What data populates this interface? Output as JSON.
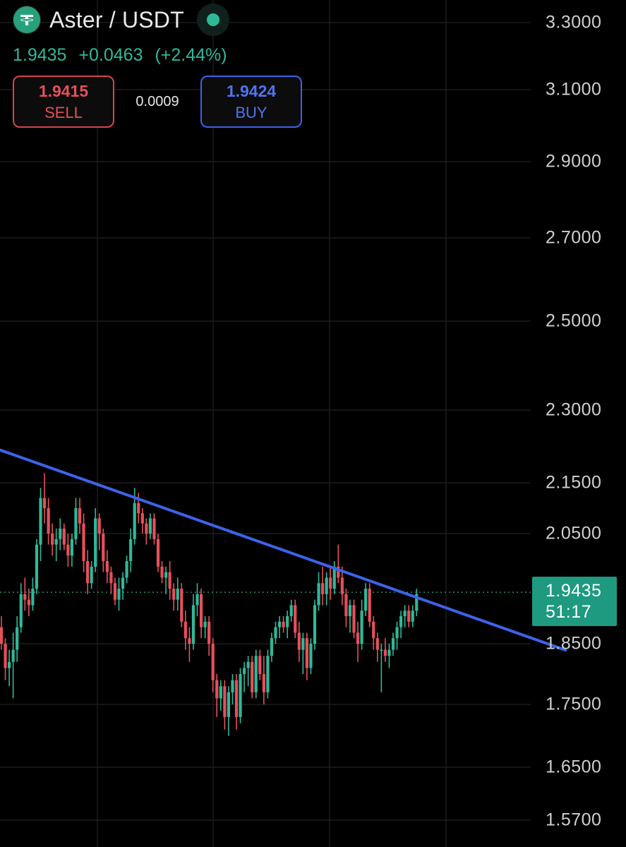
{
  "header": {
    "symbol_icon": "tether-icon",
    "title": "Aster / USDT",
    "status": "market-open-dot",
    "last_price": "1.9435",
    "change_abs": "+0.0463",
    "change_pct": "(+2.44%)"
  },
  "trade": {
    "sell_price": "1.9415",
    "sell_label": "SELL",
    "spread": "0.0009",
    "buy_price": "1.9424",
    "buy_label": "BUY"
  },
  "price_axis": {
    "ticks": [
      "3.3000",
      "3.1000",
      "2.9000",
      "2.7000",
      "2.5000",
      "2.3000",
      "2.1500",
      "2.0500",
      "1.8500",
      "1.7500",
      "1.6500",
      "1.5700"
    ],
    "current_price": "1.9435",
    "countdown": "51:17"
  },
  "colors": {
    "background": "#000000",
    "up": "#2fb898",
    "down": "#e5505b",
    "trendline": "#3d63e9",
    "grid": "#1c1c1c",
    "price_tag": "#1d9a80"
  },
  "chart_data": {
    "type": "candlestick",
    "title": "Aster / USDT",
    "y_scale": "log",
    "ylim": [
      1.57,
      3.3
    ],
    "y_ticks": [
      3.3,
      3.1,
      2.9,
      2.7,
      2.5,
      2.3,
      2.15,
      2.05,
      1.85,
      1.75,
      1.65,
      1.57
    ],
    "grid": true,
    "last_price": 1.9435,
    "series": [
      {
        "name": "Aster / USDT",
        "ohlc": [
          [
            1.88,
            1.9,
            1.84,
            1.85
          ],
          [
            1.85,
            1.86,
            1.79,
            1.81
          ],
          [
            1.81,
            1.84,
            1.78,
            1.82
          ],
          [
            1.82,
            1.87,
            1.76,
            1.84
          ],
          [
            1.84,
            1.9,
            1.82,
            1.88
          ],
          [
            1.88,
            1.96,
            1.87,
            1.94
          ],
          [
            1.94,
            1.97,
            1.91,
            1.93
          ],
          [
            1.93,
            1.95,
            1.9,
            1.92
          ],
          [
            1.92,
            1.97,
            1.91,
            1.95
          ],
          [
            1.95,
            2.04,
            1.94,
            2.03
          ],
          [
            2.03,
            2.14,
            2.0,
            2.12
          ],
          [
            2.12,
            2.17,
            2.07,
            2.1
          ],
          [
            2.1,
            2.12,
            2.03,
            2.05
          ],
          [
            2.05,
            2.07,
            2.01,
            2.03
          ],
          [
            2.03,
            2.06,
            2.0,
            2.04
          ],
          [
            2.04,
            2.08,
            2.02,
            2.06
          ],
          [
            2.06,
            2.07,
            2.02,
            2.03
          ],
          [
            2.03,
            2.05,
            1.99,
            2.01
          ],
          [
            2.01,
            2.05,
            1.99,
            2.04
          ],
          [
            2.04,
            2.12,
            2.03,
            2.1
          ],
          [
            2.1,
            2.12,
            2.05,
            2.07
          ],
          [
            2.07,
            2.09,
            1.98,
            2.0
          ],
          [
            2.0,
            2.02,
            1.94,
            1.96
          ],
          [
            1.96,
            2.0,
            1.95,
            1.99
          ],
          [
            1.99,
            2.1,
            1.98,
            2.08
          ],
          [
            2.08,
            2.09,
            2.02,
            2.05
          ],
          [
            2.05,
            2.06,
            1.98,
            2.0
          ],
          [
            2.0,
            2.02,
            1.96,
            1.98
          ],
          [
            1.98,
            1.99,
            1.94,
            1.96
          ],
          [
            1.96,
            1.97,
            1.92,
            1.93
          ],
          [
            1.93,
            1.97,
            1.91,
            1.95
          ],
          [
            1.95,
            1.98,
            1.93,
            1.97
          ],
          [
            1.97,
            2.01,
            1.96,
            2.0
          ],
          [
            2.0,
            2.06,
            1.98,
            2.04
          ],
          [
            2.04,
            2.14,
            2.03,
            2.11
          ],
          [
            2.11,
            2.13,
            2.07,
            2.09
          ],
          [
            2.09,
            2.1,
            2.05,
            2.07
          ],
          [
            2.07,
            2.08,
            2.03,
            2.05
          ],
          [
            2.05,
            2.09,
            2.04,
            2.08
          ],
          [
            2.08,
            2.09,
            2.03,
            2.04
          ],
          [
            2.04,
            2.05,
            1.98,
            1.99
          ],
          [
            1.99,
            2.0,
            1.96,
            1.97
          ],
          [
            1.97,
            1.99,
            1.94,
            1.98
          ],
          [
            1.98,
            2.0,
            1.93,
            1.95
          ],
          [
            1.95,
            1.96,
            1.91,
            1.93
          ],
          [
            1.93,
            1.97,
            1.91,
            1.95
          ],
          [
            1.95,
            1.96,
            1.88,
            1.89
          ],
          [
            1.89,
            1.91,
            1.84,
            1.86
          ],
          [
            1.86,
            1.88,
            1.82,
            1.85
          ],
          [
            1.85,
            1.94,
            1.84,
            1.92
          ],
          [
            1.92,
            1.96,
            1.9,
            1.94
          ],
          [
            1.94,
            1.95,
            1.86,
            1.88
          ],
          [
            1.88,
            1.9,
            1.86,
            1.89
          ],
          [
            1.89,
            1.9,
            1.83,
            1.85
          ],
          [
            1.85,
            1.86,
            1.77,
            1.79
          ],
          [
            1.79,
            1.8,
            1.73,
            1.76
          ],
          [
            1.76,
            1.79,
            1.74,
            1.78
          ],
          [
            1.78,
            1.79,
            1.71,
            1.73
          ],
          [
            1.73,
            1.78,
            1.7,
            1.77
          ],
          [
            1.77,
            1.8,
            1.75,
            1.79
          ],
          [
            1.79,
            1.8,
            1.71,
            1.73
          ],
          [
            1.73,
            1.81,
            1.72,
            1.8
          ],
          [
            1.8,
            1.82,
            1.77,
            1.81
          ],
          [
            1.81,
            1.83,
            1.78,
            1.82
          ],
          [
            1.82,
            1.83,
            1.76,
            1.77
          ],
          [
            1.77,
            1.84,
            1.76,
            1.83
          ],
          [
            1.83,
            1.84,
            1.79,
            1.8
          ],
          [
            1.8,
            1.83,
            1.75,
            1.77
          ],
          [
            1.77,
            1.84,
            1.76,
            1.83
          ],
          [
            1.83,
            1.87,
            1.82,
            1.86
          ],
          [
            1.86,
            1.89,
            1.85,
            1.88
          ],
          [
            1.88,
            1.9,
            1.86,
            1.89
          ],
          [
            1.89,
            1.9,
            1.87,
            1.88
          ],
          [
            1.88,
            1.91,
            1.86,
            1.9
          ],
          [
            1.9,
            1.93,
            1.89,
            1.92
          ],
          [
            1.92,
            1.93,
            1.86,
            1.87
          ],
          [
            1.87,
            1.89,
            1.82,
            1.84
          ],
          [
            1.84,
            1.87,
            1.8,
            1.86
          ],
          [
            1.86,
            1.87,
            1.79,
            1.81
          ],
          [
            1.81,
            1.86,
            1.8,
            1.85
          ],
          [
            1.85,
            1.93,
            1.84,
            1.92
          ],
          [
            1.92,
            1.98,
            1.91,
            1.96
          ],
          [
            1.96,
            1.99,
            1.92,
            1.94
          ],
          [
            1.94,
            1.98,
            1.92,
            1.97
          ],
          [
            1.97,
            1.99,
            1.93,
            1.95
          ],
          [
            1.95,
            2.0,
            1.94,
            1.99
          ],
          [
            1.99,
            2.03,
            1.96,
            1.97
          ],
          [
            1.97,
            1.99,
            1.92,
            1.94
          ],
          [
            1.94,
            1.95,
            1.88,
            1.9
          ],
          [
            1.9,
            1.93,
            1.87,
            1.92
          ],
          [
            1.92,
            1.93,
            1.86,
            1.87
          ],
          [
            1.87,
            1.89,
            1.82,
            1.85
          ],
          [
            1.85,
            1.93,
            1.84,
            1.91
          ],
          [
            1.91,
            1.96,
            1.9,
            1.95
          ],
          [
            1.95,
            1.96,
            1.88,
            1.89
          ],
          [
            1.89,
            1.9,
            1.84,
            1.86
          ],
          [
            1.86,
            1.87,
            1.82,
            1.84
          ],
          [
            1.84,
            1.85,
            1.77,
            1.84
          ],
          [
            1.84,
            1.86,
            1.82,
            1.83
          ],
          [
            1.83,
            1.85,
            1.81,
            1.84
          ],
          [
            1.84,
            1.87,
            1.83,
            1.86
          ],
          [
            1.86,
            1.89,
            1.84,
            1.88
          ],
          [
            1.88,
            1.91,
            1.86,
            1.9
          ],
          [
            1.9,
            1.92,
            1.88,
            1.91
          ],
          [
            1.91,
            1.92,
            1.88,
            1.89
          ],
          [
            1.89,
            1.92,
            1.88,
            1.91
          ],
          [
            1.91,
            1.95,
            1.9,
            1.94
          ]
        ]
      }
    ],
    "trendline": {
      "color": "#3d63e9",
      "from_candle": -9,
      "from_price": 2.2425,
      "to_candle": 144,
      "to_price": 1.8395
    }
  }
}
